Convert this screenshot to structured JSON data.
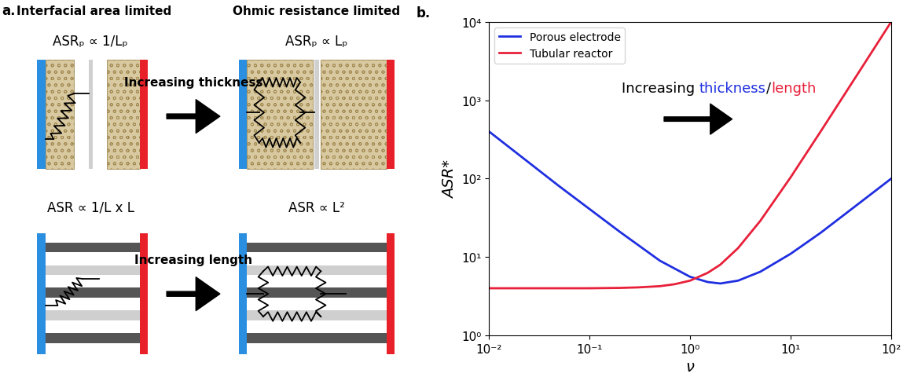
{
  "panel_a": {
    "label": "a.",
    "headings": [
      "Interfacial area limited",
      "Ohmic resistance limited"
    ],
    "rows": [
      {
        "arrow_text": "Increasing thickness",
        "left_formula": "ASRₚ ∝ 1/Lₚ",
        "right_formula": "ASRₚ ∝ Lₚ"
      },
      {
        "arrow_text": "Increasing length",
        "left_formula": "ASR ∝ 1/L x L",
        "right_formula": "ASR ∝ L²"
      }
    ]
  },
  "chart_data": {
    "type": "line",
    "panel_label": "b.",
    "log": true,
    "legend": "upper left",
    "x_label": "ν",
    "y_label": "ASR*",
    "xlim": [
      0.01,
      100
    ],
    "ylim": [
      1,
      10000
    ],
    "xticks": [
      {
        "value": 0.01,
        "label": "10⁻²"
      },
      {
        "value": 0.1,
        "label": "10⁻¹"
      },
      {
        "value": 1,
        "label": "10⁰"
      },
      {
        "value": 10,
        "label": "10¹"
      },
      {
        "value": 100,
        "label": "10²"
      }
    ],
    "yticks": [
      {
        "value": 1,
        "label": "10⁰"
      },
      {
        "value": 10,
        "label": "10¹"
      },
      {
        "value": 100,
        "label": "10²"
      },
      {
        "value": 1000,
        "label": "10³"
      },
      {
        "value": 10000,
        "label": "10⁴"
      }
    ],
    "annotation": [
      {
        "text": "Increasing "
      },
      {
        "text": "thickness",
        "color": "#1f2fe0"
      },
      {
        "text": "/"
      },
      {
        "text": "length",
        "color": "#e8203a"
      }
    ],
    "series": [
      {
        "name": "Porous electrode",
        "color": "#1f2fe0",
        "x": [
          0.01,
          0.02,
          0.05,
          0.1,
          0.2,
          0.5,
          1,
          1.5,
          2,
          3,
          5,
          10,
          20,
          50,
          100
        ],
        "values": [
          400,
          200,
          80,
          41,
          21,
          9.0,
          5.6,
          4.8,
          4.6,
          5.0,
          6.5,
          11,
          20.5,
          50.5,
          100
        ]
      },
      {
        "name": "Tubular reactor",
        "color": "#e8203a",
        "x": [
          0.01,
          0.1,
          0.2,
          0.3,
          0.5,
          0.7,
          1,
          1.5,
          2,
          3,
          5,
          10,
          20,
          50,
          100
        ],
        "values": [
          4.0,
          4.0,
          4.04,
          4.1,
          4.25,
          4.5,
          5.0,
          6.3,
          8.0,
          13,
          29,
          104,
          404,
          2504,
          10000
        ]
      }
    ]
  }
}
